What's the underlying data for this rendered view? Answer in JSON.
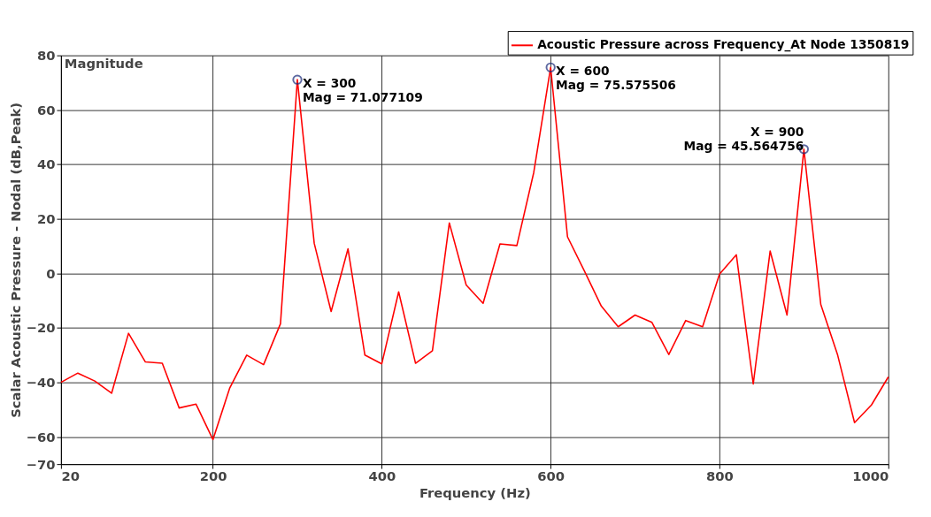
{
  "chart_data": {
    "type": "line",
    "title": "Magnitude",
    "xlabel": "Frequency (Hz)",
    "ylabel": "Scalar Acoustic Pressure - Nodal (dB,Peak)",
    "x": [
      20,
      40,
      60,
      80,
      100,
      120,
      140,
      160,
      180,
      200,
      220,
      240,
      260,
      280,
      300,
      320,
      340,
      360,
      380,
      400,
      420,
      440,
      460,
      480,
      500,
      520,
      540,
      560,
      580,
      600,
      620,
      640,
      660,
      680,
      700,
      720,
      740,
      760,
      780,
      800,
      820,
      840,
      860,
      880,
      900,
      920,
      940,
      960,
      980,
      1000
    ],
    "series": [
      {
        "name": "Acoustic Pressure across Frequency_At Node 1350819",
        "color": "#ff0000",
        "values": [
          -40,
          -36.6,
          -39.5,
          -44,
          -22,
          -32.5,
          -33,
          -49.4,
          -48,
          -61,
          -42,
          -30,
          -33.5,
          -18.5,
          71.077109,
          11,
          -14,
          9,
          -30,
          -33.2,
          -6.8,
          -33,
          -28.4,
          18.5,
          -4.3,
          -11,
          10.8,
          10.2,
          37,
          75.575506,
          13.4,
          0.9,
          -12,
          -19.6,
          -15.3,
          -18,
          -29.8,
          -17.3,
          -19.6,
          -0.3,
          6.8,
          -40.6,
          8.2,
          -15.3,
          45.564756,
          -11.4,
          -30,
          -54.8,
          -48.3,
          -38
        ]
      }
    ],
    "xlim": [
      20,
      1000
    ],
    "xticks": [
      20,
      200,
      400,
      600,
      800,
      1000
    ],
    "ylim": [
      -70,
      80
    ],
    "yticks": [
      -70,
      -60,
      -40,
      -20,
      0,
      20,
      40,
      60,
      80
    ],
    "grid": true,
    "legend": "top right",
    "marker": "none",
    "line_style": "solid",
    "annotations": [
      {
        "text": "X   = 300\nMag = 71.077109",
        "x": 300,
        "y": 71.077109
      },
      {
        "text": "X   = 600\nMag = 75.575506",
        "x": 600,
        "y": 75.575506
      },
      {
        "text": "X   = 900\nMag = 45.564756",
        "x": 900,
        "y": 45.564756
      }
    ]
  }
}
